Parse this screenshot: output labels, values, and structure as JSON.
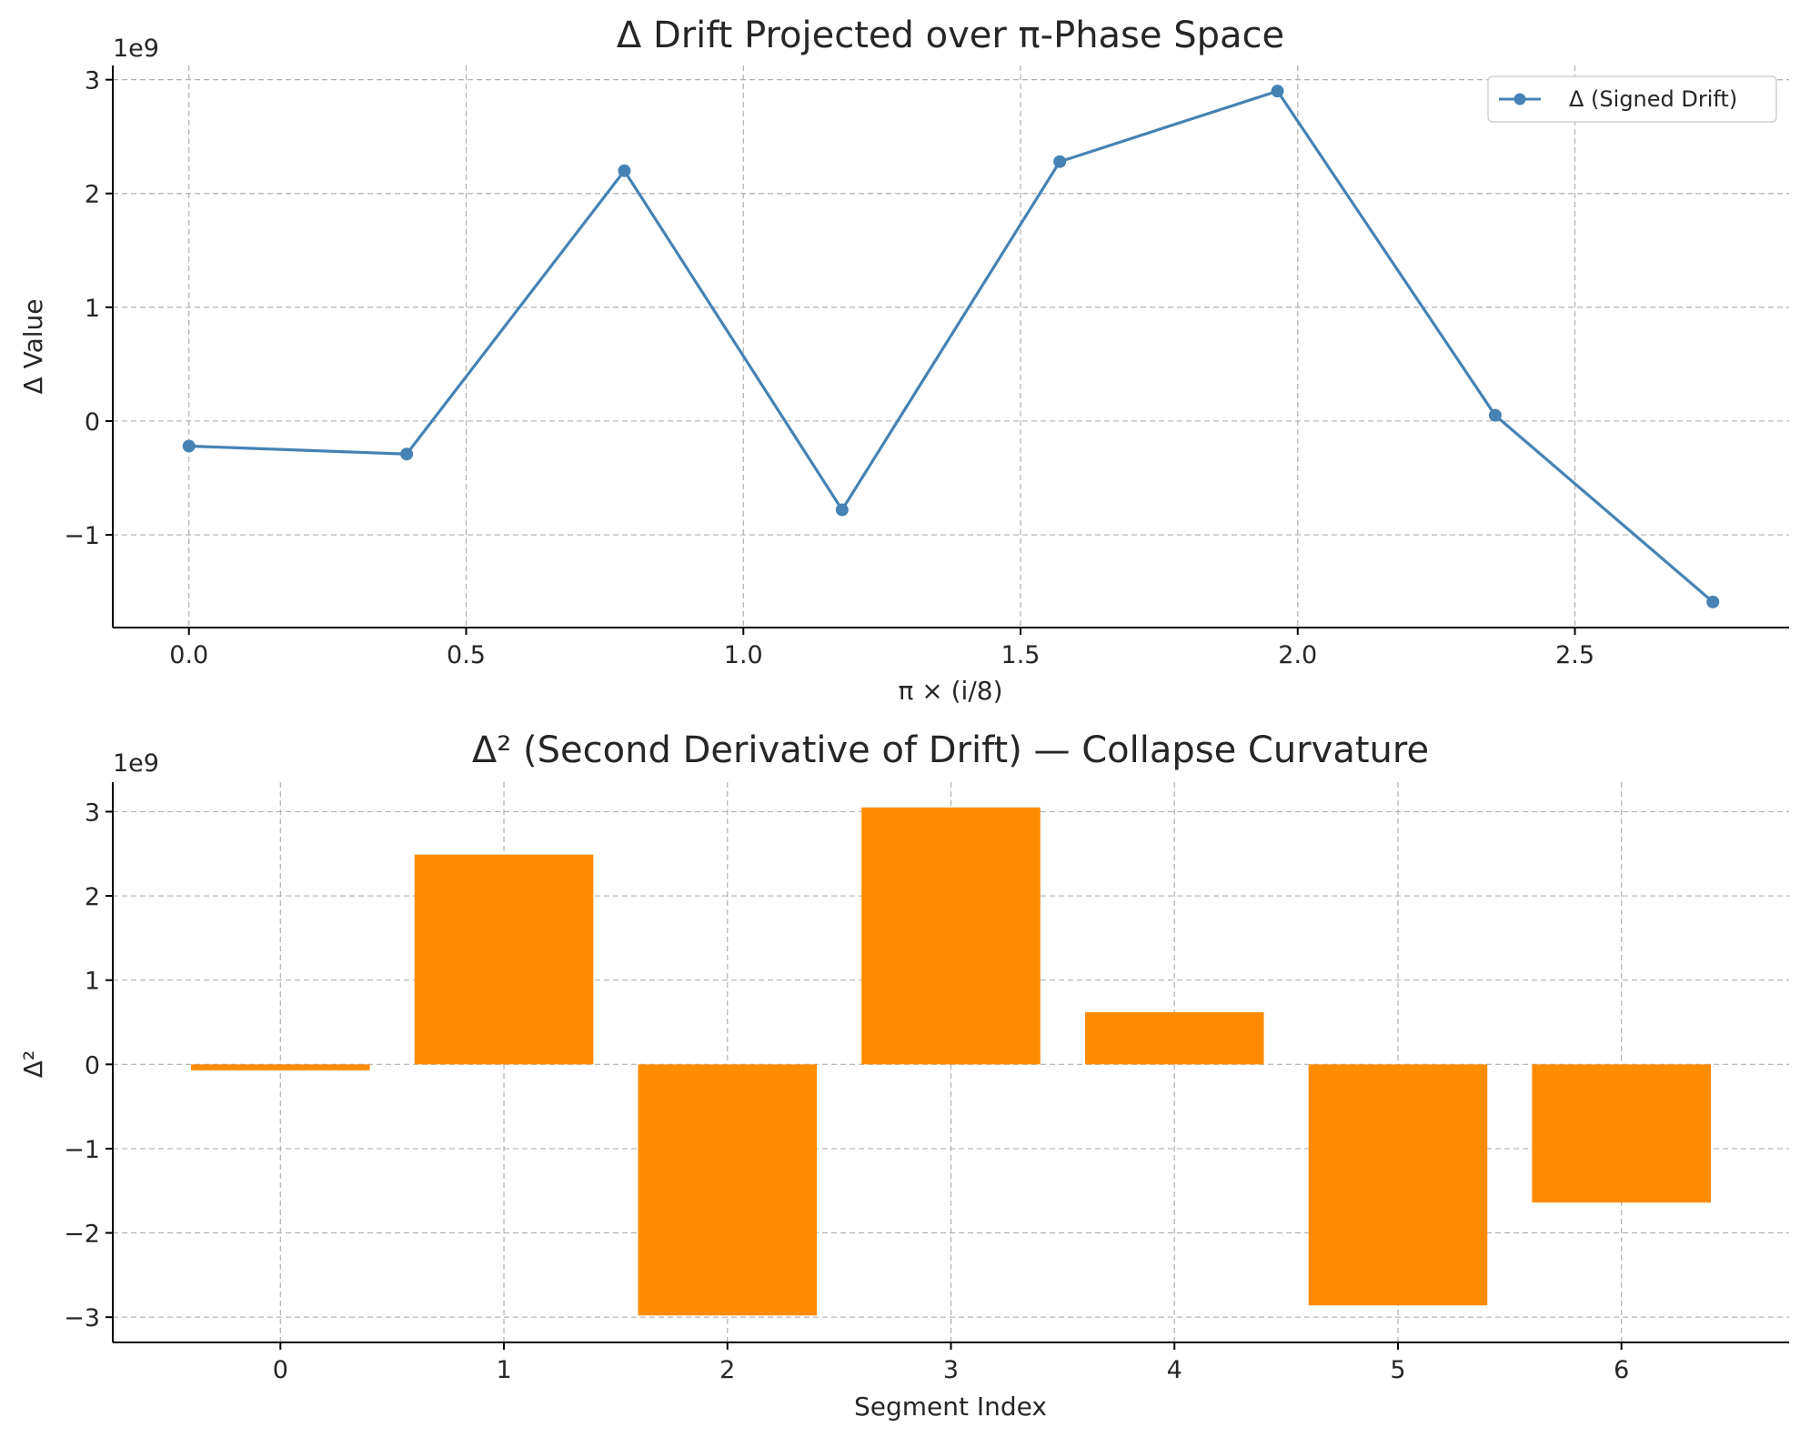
{
  "chart_data": [
    {
      "type": "line",
      "title": "Δ Drift Projected over π-Phase Space",
      "xlabel": "π × (i/8)",
      "ylabel": "Δ Value",
      "y_offset_label": "1e9",
      "x": [
        0.0,
        0.3927,
        0.7854,
        1.1781,
        1.5708,
        1.9635,
        2.3562,
        2.7489
      ],
      "series": [
        {
          "name": "Δ (Signed Drift)",
          "values": [
            -220000000,
            -290000000,
            2200000000,
            -780000000,
            2280000000,
            2900000000,
            50000000,
            -1590000000
          ],
          "color": "#4682b4"
        }
      ],
      "xlim": [
        -0.1374,
        2.8863
      ],
      "ylim": [
        -1.815,
        3.125
      ],
      "ylim_scale": "1e9",
      "xticks": [
        "0.0",
        "0.5",
        "1.0",
        "1.5",
        "2.0",
        "2.5"
      ],
      "yticks": [
        "−1",
        "0",
        "1",
        "2",
        "3"
      ],
      "grid": true,
      "legend": "upper right"
    },
    {
      "type": "bar",
      "title": "Δ² (Second Derivative of Drift) — Collapse Curvature",
      "xlabel": "Segment Index",
      "ylabel": "Δ²",
      "y_offset_label": "1e9",
      "categories": [
        "0",
        "1",
        "2",
        "3",
        "4",
        "5",
        "6"
      ],
      "values": [
        -70000000,
        2490000000,
        -2980000000,
        3050000000,
        620000000,
        -2860000000,
        -1640000000
      ],
      "color": "#ff8c00",
      "xlim": [
        -0.75,
        6.75
      ],
      "ylim": [
        -3.3,
        3.35
      ],
      "ylim_scale": "1e9",
      "yticks": [
        "−3",
        "−2",
        "−1",
        "0",
        "1",
        "2",
        "3"
      ],
      "grid": true
    }
  ]
}
